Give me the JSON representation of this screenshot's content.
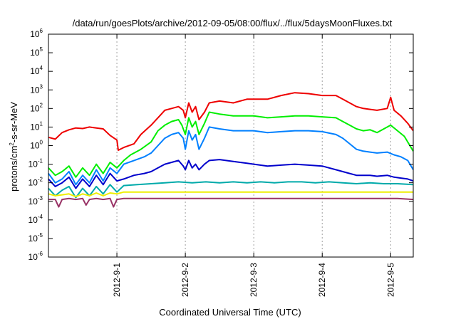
{
  "chart_data": {
    "type": "line",
    "title": "/data/run/goesPlots/archive/2012-09-05/08:00/flux/../flux/5daysMoonFluxes.txt",
    "xlabel": "Coordinated Universal Time (UTC)",
    "ylabel": "protons/cm2-s-sr-MeV",
    "ylabel_parts": [
      "protons/cm",
      "2",
      "-s-sr-MeV"
    ],
    "yscale": "log",
    "ylim_exp": [
      -6,
      6
    ],
    "xlim": [
      0,
      5.33
    ],
    "grid": true,
    "y_ticks": [
      {
        "base": "10",
        "exp": "6",
        "value": 6
      },
      {
        "base": "10",
        "exp": "5",
        "value": 5
      },
      {
        "base": "10",
        "exp": "4",
        "value": 4
      },
      {
        "base": "10",
        "exp": "3",
        "value": 3
      },
      {
        "base": "10",
        "exp": "2",
        "value": 2
      },
      {
        "base": "10",
        "exp": "1",
        "value": 1
      },
      {
        "base": "10",
        "exp": "0",
        "value": 0
      },
      {
        "base": "10",
        "exp": "-1",
        "value": -1
      },
      {
        "base": "10",
        "exp": "-2",
        "value": -2
      },
      {
        "base": "10",
        "exp": "-3",
        "value": -3
      },
      {
        "base": "10",
        "exp": "-4",
        "value": -4
      },
      {
        "base": "10",
        "exp": "-5",
        "value": -5
      },
      {
        "base": "10",
        "exp": "-6",
        "value": -6
      }
    ],
    "x_ticks": [
      {
        "label": "2012-9-1",
        "value": 1
      },
      {
        "label": "2012-9-2",
        "value": 2
      },
      {
        "label": "2012-9-3",
        "value": 3
      },
      {
        "label": "2012-9-4",
        "value": 4
      },
      {
        "label": "2012-9-5",
        "value": 5
      }
    ],
    "series": [
      {
        "color": "#ee0000",
        "points": [
          [
            0,
            0.45
          ],
          [
            0.1,
            0.35
          ],
          [
            0.2,
            0.7
          ],
          [
            0.3,
            0.85
          ],
          [
            0.4,
            0.95
          ],
          [
            0.5,
            0.92
          ],
          [
            0.6,
            1.0
          ],
          [
            0.7,
            0.95
          ],
          [
            0.8,
            0.9
          ],
          [
            0.9,
            0.55
          ],
          [
            1.0,
            0.3
          ],
          [
            1.02,
            -0.25
          ],
          [
            1.1,
            -0.1
          ],
          [
            1.25,
            0.1
          ],
          [
            1.35,
            0.6
          ],
          [
            1.5,
            1.1
          ],
          [
            1.6,
            1.5
          ],
          [
            1.7,
            1.9
          ],
          [
            1.8,
            2.0
          ],
          [
            1.9,
            2.1
          ],
          [
            1.97,
            1.9
          ],
          [
            2.0,
            1.5
          ],
          [
            2.05,
            2.3
          ],
          [
            2.1,
            1.8
          ],
          [
            2.15,
            2.1
          ],
          [
            2.2,
            1.4
          ],
          [
            2.28,
            1.8
          ],
          [
            2.35,
            2.3
          ],
          [
            2.5,
            2.4
          ],
          [
            2.7,
            2.3
          ],
          [
            2.9,
            2.5
          ],
          [
            3.0,
            2.5
          ],
          [
            3.2,
            2.5
          ],
          [
            3.4,
            2.7
          ],
          [
            3.6,
            2.85
          ],
          [
            3.8,
            2.8
          ],
          [
            4.0,
            2.7
          ],
          [
            4.2,
            2.7
          ],
          [
            4.3,
            2.5
          ],
          [
            4.4,
            2.3
          ],
          [
            4.5,
            2.1
          ],
          [
            4.6,
            2.0
          ],
          [
            4.7,
            1.95
          ],
          [
            4.8,
            1.9
          ],
          [
            4.95,
            2.0
          ],
          [
            5.0,
            2.6
          ],
          [
            5.05,
            1.9
          ],
          [
            5.15,
            1.6
          ],
          [
            5.25,
            1.2
          ],
          [
            5.33,
            0.8
          ]
        ]
      },
      {
        "color": "#00ee00",
        "points": [
          [
            0,
            -1.2
          ],
          [
            0.1,
            -1.6
          ],
          [
            0.2,
            -1.4
          ],
          [
            0.3,
            -1.1
          ],
          [
            0.4,
            -1.7
          ],
          [
            0.5,
            -1.2
          ],
          [
            0.6,
            -1.6
          ],
          [
            0.7,
            -1.0
          ],
          [
            0.8,
            -1.5
          ],
          [
            0.9,
            -0.9
          ],
          [
            1.0,
            -1.2
          ],
          [
            1.1,
            -0.8
          ],
          [
            1.2,
            -0.5
          ],
          [
            1.35,
            -0.2
          ],
          [
            1.5,
            0.2
          ],
          [
            1.6,
            0.8
          ],
          [
            1.7,
            1.1
          ],
          [
            1.8,
            1.3
          ],
          [
            1.9,
            1.4
          ],
          [
            1.95,
            1.1
          ],
          [
            2.0,
            0.6
          ],
          [
            2.05,
            1.5
          ],
          [
            2.1,
            1.0
          ],
          [
            2.15,
            1.3
          ],
          [
            2.2,
            0.6
          ],
          [
            2.28,
            1.2
          ],
          [
            2.35,
            1.8
          ],
          [
            2.5,
            1.7
          ],
          [
            2.7,
            1.6
          ],
          [
            2.9,
            1.6
          ],
          [
            3.0,
            1.6
          ],
          [
            3.2,
            1.5
          ],
          [
            3.4,
            1.55
          ],
          [
            3.6,
            1.6
          ],
          [
            3.8,
            1.6
          ],
          [
            4.0,
            1.55
          ],
          [
            4.2,
            1.5
          ],
          [
            4.3,
            1.3
          ],
          [
            4.4,
            1.1
          ],
          [
            4.5,
            0.9
          ],
          [
            4.6,
            0.8
          ],
          [
            4.7,
            0.85
          ],
          [
            4.8,
            0.7
          ],
          [
            4.9,
            0.9
          ],
          [
            5.0,
            1.1
          ],
          [
            5.1,
            0.8
          ],
          [
            5.2,
            0.5
          ],
          [
            5.33,
            -0.3
          ]
        ]
      },
      {
        "color": "#0080ff",
        "points": [
          [
            0,
            -1.5
          ],
          [
            0.1,
            -2.0
          ],
          [
            0.2,
            -1.8
          ],
          [
            0.3,
            -1.4
          ],
          [
            0.4,
            -2.1
          ],
          [
            0.5,
            -1.6
          ],
          [
            0.6,
            -2.0
          ],
          [
            0.7,
            -1.3
          ],
          [
            0.8,
            -1.9
          ],
          [
            0.9,
            -1.2
          ],
          [
            1.0,
            -1.5
          ],
          [
            1.1,
            -1.0
          ],
          [
            1.25,
            -0.8
          ],
          [
            1.4,
            -0.6
          ],
          [
            1.5,
            -0.4
          ],
          [
            1.6,
            0.0
          ],
          [
            1.7,
            0.4
          ],
          [
            1.8,
            0.6
          ],
          [
            1.9,
            0.7
          ],
          [
            1.97,
            0.4
          ],
          [
            2.0,
            -0.2
          ],
          [
            2.05,
            0.8
          ],
          [
            2.1,
            0.3
          ],
          [
            2.15,
            0.6
          ],
          [
            2.2,
            -0.2
          ],
          [
            2.28,
            0.4
          ],
          [
            2.35,
            1.0
          ],
          [
            2.5,
            0.9
          ],
          [
            2.7,
            0.8
          ],
          [
            2.9,
            0.8
          ],
          [
            3.0,
            0.8
          ],
          [
            3.2,
            0.7
          ],
          [
            3.4,
            0.75
          ],
          [
            3.6,
            0.8
          ],
          [
            3.8,
            0.8
          ],
          [
            4.0,
            0.75
          ],
          [
            4.2,
            0.6
          ],
          [
            4.3,
            0.4
          ],
          [
            4.4,
            0.1
          ],
          [
            4.5,
            -0.2
          ],
          [
            4.6,
            -0.3
          ],
          [
            4.7,
            -0.35
          ],
          [
            4.8,
            -0.4
          ],
          [
            4.95,
            -0.35
          ],
          [
            5.05,
            -0.5
          ],
          [
            5.15,
            -0.6
          ],
          [
            5.25,
            -0.8
          ],
          [
            5.33,
            -1.3
          ]
        ]
      },
      {
        "color": "#0000cc",
        "points": [
          [
            0,
            -1.8
          ],
          [
            0.1,
            -2.2
          ],
          [
            0.2,
            -2.0
          ],
          [
            0.3,
            -1.7
          ],
          [
            0.4,
            -2.3
          ],
          [
            0.5,
            -1.8
          ],
          [
            0.6,
            -2.2
          ],
          [
            0.7,
            -1.6
          ],
          [
            0.8,
            -2.1
          ],
          [
            0.9,
            -1.5
          ],
          [
            1.0,
            -1.9
          ],
          [
            1.1,
            -1.8
          ],
          [
            1.25,
            -1.6
          ],
          [
            1.4,
            -1.5
          ],
          [
            1.5,
            -1.4
          ],
          [
            1.6,
            -1.2
          ],
          [
            1.7,
            -1.0
          ],
          [
            1.8,
            -0.9
          ],
          [
            1.9,
            -0.8
          ],
          [
            1.97,
            -1.1
          ],
          [
            2.0,
            -1.3
          ],
          [
            2.05,
            -0.8
          ],
          [
            2.1,
            -1.2
          ],
          [
            2.15,
            -1.0
          ],
          [
            2.2,
            -1.3
          ],
          [
            2.28,
            -1.0
          ],
          [
            2.35,
            -0.8
          ],
          [
            2.5,
            -0.75
          ],
          [
            2.7,
            -0.85
          ],
          [
            2.9,
            -0.95
          ],
          [
            3.0,
            -1.0
          ],
          [
            3.2,
            -1.1
          ],
          [
            3.4,
            -1.05
          ],
          [
            3.6,
            -1.0
          ],
          [
            3.8,
            -1.05
          ],
          [
            4.0,
            -1.1
          ],
          [
            4.2,
            -1.3
          ],
          [
            4.3,
            -1.4
          ],
          [
            4.4,
            -1.5
          ],
          [
            4.5,
            -1.6
          ],
          [
            4.6,
            -1.6
          ],
          [
            4.7,
            -1.6
          ],
          [
            4.8,
            -1.65
          ],
          [
            4.95,
            -1.6
          ],
          [
            5.05,
            -1.7
          ],
          [
            5.15,
            -1.75
          ],
          [
            5.25,
            -1.8
          ],
          [
            5.33,
            -1.9
          ]
        ]
      },
      {
        "color": "#00aaaa",
        "points": [
          [
            0,
            -2.3
          ],
          [
            0.1,
            -2.7
          ],
          [
            0.2,
            -2.4
          ],
          [
            0.3,
            -2.2
          ],
          [
            0.4,
            -2.8
          ],
          [
            0.5,
            -2.3
          ],
          [
            0.6,
            -2.7
          ],
          [
            0.7,
            -2.2
          ],
          [
            0.8,
            -2.6
          ],
          [
            0.9,
            -2.1
          ],
          [
            1.0,
            -2.5
          ],
          [
            1.1,
            -2.15
          ],
          [
            1.3,
            -2.1
          ],
          [
            1.5,
            -2.05
          ],
          [
            1.7,
            -2.0
          ],
          [
            1.9,
            -1.95
          ],
          [
            2.1,
            -2.0
          ],
          [
            2.3,
            -1.95
          ],
          [
            2.5,
            -2.0
          ],
          [
            2.7,
            -1.95
          ],
          [
            2.9,
            -2.0
          ],
          [
            3.1,
            -1.95
          ],
          [
            3.3,
            -2.0
          ],
          [
            3.5,
            -1.95
          ],
          [
            3.7,
            -1.95
          ],
          [
            3.9,
            -2.0
          ],
          [
            4.1,
            -1.95
          ],
          [
            4.3,
            -2.0
          ],
          [
            4.5,
            -2.05
          ],
          [
            4.7,
            -2.0
          ],
          [
            4.9,
            -2.05
          ],
          [
            5.1,
            -2.05
          ],
          [
            5.33,
            -2.1
          ]
        ]
      },
      {
        "color": "#eeee00",
        "points": [
          [
            0,
            -2.6
          ],
          [
            0.1,
            -2.7
          ],
          [
            0.2,
            -2.65
          ],
          [
            0.3,
            -2.6
          ],
          [
            0.4,
            -2.75
          ],
          [
            0.5,
            -2.6
          ],
          [
            0.6,
            -2.7
          ],
          [
            0.7,
            -2.55
          ],
          [
            0.8,
            -2.7
          ],
          [
            0.9,
            -2.55
          ],
          [
            1.0,
            -2.6
          ],
          [
            1.1,
            -2.5
          ],
          [
            1.3,
            -2.5
          ],
          [
            1.5,
            -2.5
          ],
          [
            1.7,
            -2.5
          ],
          [
            1.9,
            -2.5
          ],
          [
            2.1,
            -2.5
          ],
          [
            2.3,
            -2.5
          ],
          [
            2.5,
            -2.5
          ],
          [
            2.7,
            -2.5
          ],
          [
            2.9,
            -2.5
          ],
          [
            3.1,
            -2.5
          ],
          [
            3.3,
            -2.5
          ],
          [
            3.5,
            -2.5
          ],
          [
            3.7,
            -2.5
          ],
          [
            3.9,
            -2.5
          ],
          [
            4.1,
            -2.5
          ],
          [
            4.3,
            -2.5
          ],
          [
            4.5,
            -2.5
          ],
          [
            4.7,
            -2.5
          ],
          [
            4.9,
            -2.5
          ],
          [
            5.1,
            -2.5
          ],
          [
            5.33,
            -2.5
          ]
        ]
      },
      {
        "color": "#993366",
        "points": [
          [
            0,
            -2.9
          ],
          [
            0.1,
            -2.9
          ],
          [
            0.15,
            -3.3
          ],
          [
            0.2,
            -2.9
          ],
          [
            0.3,
            -2.85
          ],
          [
            0.4,
            -2.9
          ],
          [
            0.5,
            -2.85
          ],
          [
            0.55,
            -3.2
          ],
          [
            0.6,
            -2.9
          ],
          [
            0.7,
            -2.85
          ],
          [
            0.8,
            -2.9
          ],
          [
            0.9,
            -2.85
          ],
          [
            0.95,
            -3.3
          ],
          [
            1.0,
            -2.9
          ],
          [
            1.1,
            -2.85
          ],
          [
            1.3,
            -2.85
          ],
          [
            1.5,
            -2.85
          ],
          [
            1.7,
            -2.85
          ],
          [
            1.9,
            -2.85
          ],
          [
            2.1,
            -2.85
          ],
          [
            2.3,
            -2.85
          ],
          [
            2.5,
            -2.85
          ],
          [
            2.7,
            -2.85
          ],
          [
            2.9,
            -2.85
          ],
          [
            3.1,
            -2.85
          ],
          [
            3.3,
            -2.85
          ],
          [
            3.5,
            -2.85
          ],
          [
            3.7,
            -2.85
          ],
          [
            3.9,
            -2.85
          ],
          [
            4.1,
            -2.85
          ],
          [
            4.3,
            -2.85
          ],
          [
            4.5,
            -2.85
          ],
          [
            4.7,
            -2.85
          ],
          [
            4.9,
            -2.85
          ],
          [
            5.1,
            -2.85
          ],
          [
            5.33,
            -2.9
          ]
        ]
      }
    ]
  }
}
